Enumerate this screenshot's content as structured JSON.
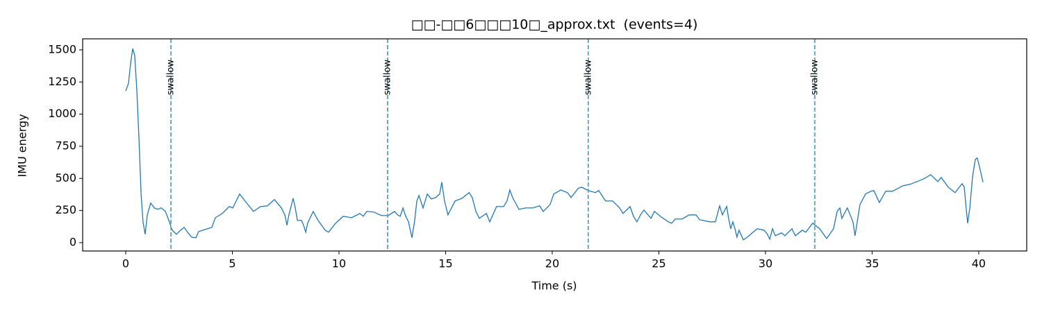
{
  "chart_data": {
    "type": "line",
    "title": "□□-□□6□□□10□_approx.txt  (events=4)",
    "xlabel": "Time (s)",
    "ylabel": "IMU energy",
    "x": [
      0.0,
      0.13,
      0.23,
      0.33,
      0.42,
      0.52,
      0.62,
      0.72,
      0.81,
      0.91,
      1.01,
      1.17,
      1.34,
      1.5,
      1.66,
      1.86,
      2.02,
      2.18,
      2.38,
      2.57,
      2.74,
      2.9,
      3.09,
      3.29,
      3.42,
      3.62,
      4.04,
      4.2,
      4.53,
      4.85,
      5.02,
      5.18,
      5.34,
      5.67,
      5.99,
      6.32,
      6.64,
      6.97,
      7.3,
      7.46,
      7.56,
      7.65,
      7.85,
      7.95,
      8.05,
      8.24,
      8.34,
      8.44,
      8.53,
      8.79,
      9.02,
      9.35,
      9.51,
      9.84,
      10.2,
      10.59,
      10.98,
      11.14,
      11.3,
      11.63,
      11.99,
      12.31,
      12.61,
      12.74,
      12.87,
      13.0,
      13.13,
      13.26,
      13.42,
      13.55,
      13.65,
      13.75,
      13.94,
      14.14,
      14.33,
      14.53,
      14.72,
      14.82,
      14.95,
      15.11,
      15.44,
      15.77,
      16.1,
      16.25,
      16.42,
      16.58,
      16.91,
      17.07,
      17.39,
      17.72,
      17.88,
      18.01,
      18.14,
      18.44,
      18.76,
      19.09,
      19.41,
      19.58,
      19.9,
      20.07,
      20.4,
      20.72,
      20.88,
      21.21,
      21.37,
      21.69,
      22.02,
      22.18,
      22.5,
      22.83,
      23.16,
      23.32,
      23.65,
      23.81,
      23.97,
      24.14,
      24.3,
      24.63,
      24.79,
      25.11,
      25.44,
      25.6,
      25.77,
      26.09,
      26.42,
      26.74,
      26.91,
      27.07,
      27.39,
      27.65,
      27.85,
      27.98,
      28.18,
      28.27,
      28.37,
      28.47,
      28.57,
      28.66,
      28.76,
      28.96,
      29.15,
      29.45,
      29.61,
      29.93,
      30.07,
      30.2,
      30.33,
      30.46,
      30.75,
      30.91,
      31.24,
      31.4,
      31.73,
      31.89,
      32.21,
      32.54,
      32.87,
      33.19,
      33.36,
      33.49,
      33.58,
      33.84,
      34.1,
      34.2,
      34.43,
      34.69,
      34.95,
      35.08,
      35.34,
      35.64,
      35.96,
      36.45,
      36.78,
      37.1,
      37.43,
      37.75,
      38.08,
      38.24,
      38.57,
      38.89,
      39.22,
      39.32,
      39.41,
      39.48,
      39.58,
      39.71,
      39.84,
      39.93,
      40.03,
      40.2
    ],
    "series": [
      {
        "color": "#1f77b4",
        "values": [
          1180,
          1240,
          1400,
          1510,
          1457,
          1187,
          810,
          378,
          162,
          65,
          216,
          308,
          270,
          259,
          270,
          243,
          173,
          97,
          65,
          97,
          119,
          81,
          43,
          38,
          86,
          97,
          119,
          194,
          227,
          281,
          270,
          324,
          378,
          308,
          243,
          281,
          286,
          335,
          270,
          216,
          135,
          216,
          345,
          270,
          173,
          173,
          135,
          81,
          151,
          243,
          173,
          97,
          81,
          151,
          205,
          194,
          227,
          205,
          243,
          238,
          211,
          211,
          243,
          216,
          205,
          270,
          205,
          162,
          38,
          173,
          324,
          367,
          270,
          378,
          340,
          351,
          378,
          470,
          324,
          216,
          324,
          345,
          389,
          351,
          243,
          189,
          227,
          162,
          281,
          281,
          324,
          410,
          351,
          259,
          270,
          270,
          286,
          243,
          297,
          378,
          410,
          389,
          351,
          421,
          432,
          405,
          389,
          405,
          324,
          324,
          270,
          227,
          281,
          205,
          162,
          216,
          254,
          189,
          243,
          200,
          162,
          151,
          184,
          184,
          216,
          216,
          178,
          173,
          162,
          162,
          286,
          216,
          281,
          189,
          108,
          162,
          108,
          43,
          97,
          22,
          43,
          86,
          108,
          97,
          70,
          27,
          108,
          54,
          76,
          54,
          108,
          54,
          97,
          81,
          151,
          108,
          32,
          108,
          243,
          270,
          189,
          270,
          162,
          54,
          297,
          378,
          400,
          405,
          313,
          400,
          400,
          443,
          454,
          475,
          497,
          529,
          475,
          507,
          432,
          389,
          459,
          432,
          270,
          151,
          270,
          513,
          648,
          659,
          594,
          470
        ]
      }
    ],
    "events": [
      {
        "x": 2.12,
        "label": "swallow"
      },
      {
        "x": 12.28,
        "label": "swallow"
      },
      {
        "x": 21.69,
        "label": "swallow"
      },
      {
        "x": 32.31,
        "label": "swallow"
      }
    ],
    "event_color": "#6aa6c6",
    "xlim": [
      -2.02,
      42.25
    ],
    "xticks": [
      0,
      5,
      10,
      15,
      20,
      25,
      30,
      35,
      40
    ],
    "ylim": [
      -65,
      1586
    ],
    "yticks": [
      0,
      250,
      500,
      750,
      1000,
      1250,
      1500
    ]
  }
}
